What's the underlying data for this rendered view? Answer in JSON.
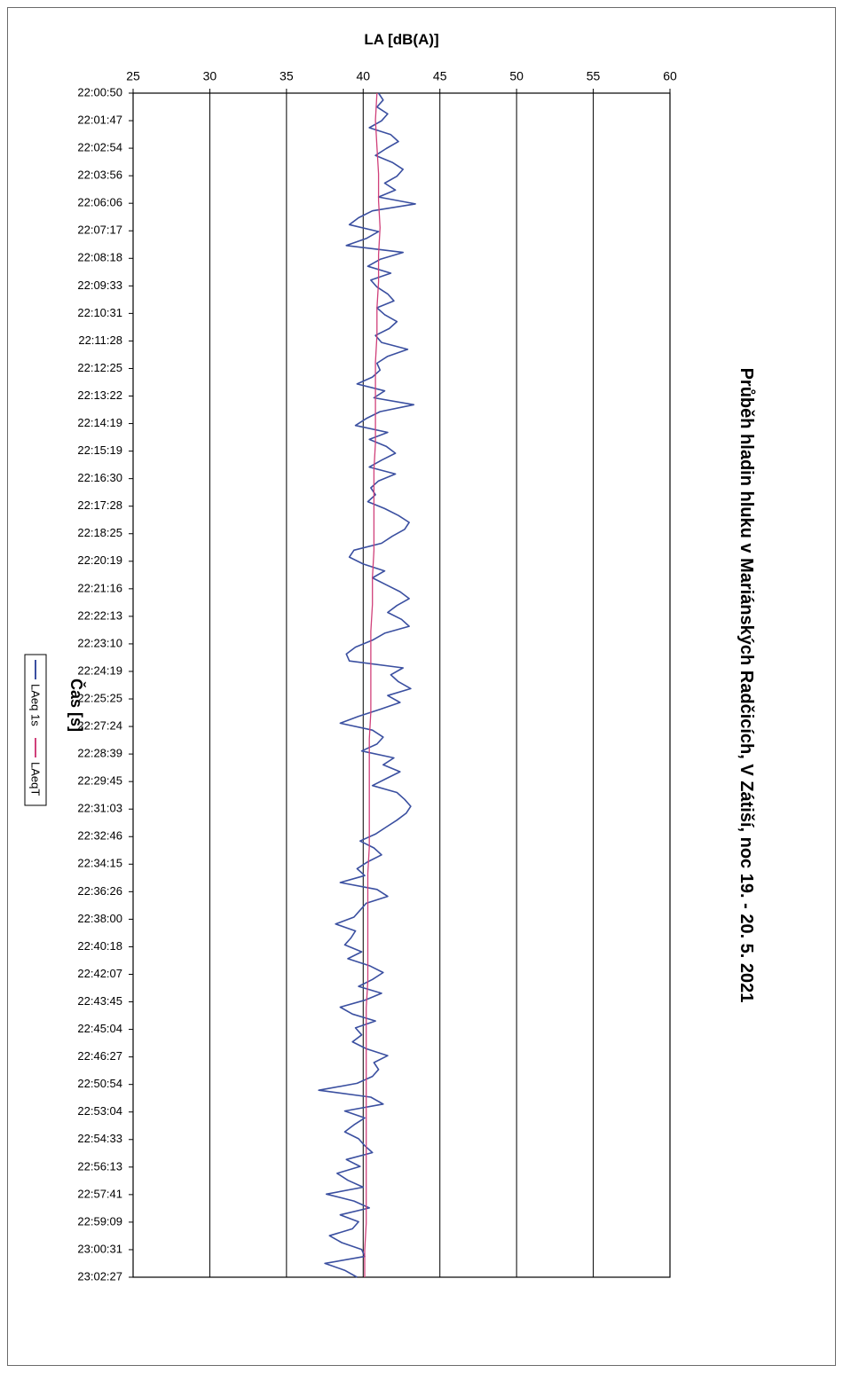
{
  "chart_data": {
    "type": "line",
    "title": "Průběh hladin hluku v Mariánských Radčicích, V Zátiší, noc 19. - 20. 5. 2021",
    "xlabel": "Čas [s]",
    "ylabel": "LA [dB(A)]",
    "ylim": [
      25,
      60
    ],
    "yticks": [
      25,
      30,
      35,
      40,
      45,
      50,
      55,
      60
    ],
    "grid": true,
    "orientation": "rotated-90-clockwise",
    "legend_position": "bottom",
    "x_ticks": [
      "22:00:50",
      "22:01:47",
      "22:02:54",
      "22:03:56",
      "22:06:06",
      "22:07:17",
      "22:08:18",
      "22:09:33",
      "22:10:31",
      "22:11:28",
      "22:12:25",
      "22:13:22",
      "22:14:19",
      "22:15:19",
      "22:16:30",
      "22:17:28",
      "22:18:25",
      "22:20:19",
      "22:21:16",
      "22:22:13",
      "22:23:10",
      "22:24:19",
      "22:25:25",
      "22:27:24",
      "22:28:39",
      "22:29:45",
      "22:31:03",
      "22:32:46",
      "22:34:15",
      "22:36:26",
      "22:38:00",
      "22:40:18",
      "22:42:07",
      "22:43:45",
      "22:45:04",
      "22:46:27",
      "22:50:54",
      "22:53:04",
      "22:54:33",
      "22:56:13",
      "22:57:41",
      "22:59:09",
      "23:00:31",
      "23:02:27"
    ],
    "series": [
      {
        "name": "LAeq 1s",
        "color": "#3a4fa0",
        "values": [
          41.0,
          41.3,
          40.9,
          41.6,
          41.2,
          40.4,
          41.8,
          42.3,
          41.5,
          40.8,
          41.9,
          42.6,
          42.2,
          41.4,
          42.1,
          41.0,
          43.4,
          40.6,
          39.7,
          39.1,
          41.0,
          40.2,
          38.9,
          42.6,
          41.1,
          40.3,
          41.8,
          40.5,
          40.9,
          41.6,
          42.0,
          40.9,
          41.4,
          42.2,
          41.7,
          40.8,
          41.2,
          42.9,
          41.6,
          40.9,
          41.1,
          40.6,
          39.6,
          41.4,
          40.7,
          43.3,
          41.1,
          40.2,
          39.5,
          41.6,
          40.4,
          41.5,
          42.1,
          41.2,
          40.4,
          42.1,
          41.0,
          40.5,
          40.8,
          40.3,
          41.4,
          42.3,
          43.0,
          42.7,
          41.9,
          41.2,
          39.4,
          39.1,
          40.0,
          41.4,
          40.6,
          41.5,
          42.4,
          43.0,
          42.2,
          41.6,
          42.5,
          43.0,
          41.4,
          40.6,
          39.5,
          38.9,
          39.1,
          42.6,
          41.8,
          42.3,
          43.1,
          41.6,
          42.4,
          41.1,
          39.7,
          38.5,
          40.6,
          41.3,
          40.9,
          39.9,
          42.0,
          41.3,
          42.4,
          41.5,
          40.6,
          42.2,
          42.7,
          43.1,
          42.8,
          42.2,
          41.5,
          40.8,
          39.8,
          40.7,
          41.2,
          40.3,
          39.6,
          40.1,
          38.5,
          40.9,
          41.6,
          40.2,
          39.8,
          39.4,
          38.2,
          39.5,
          39.2,
          38.8,
          39.9,
          39.0,
          40.4,
          41.3,
          40.6,
          39.7,
          41.2,
          40.1,
          38.5,
          39.3,
          40.8,
          39.5,
          39.9,
          39.3,
          40.2,
          41.6,
          40.7,
          41.0,
          40.6,
          39.6,
          37.1,
          40.5,
          41.3,
          38.8,
          40.1,
          39.4,
          38.8,
          39.7,
          40.1,
          40.6,
          38.9,
          39.8,
          38.3,
          39.0,
          40.0,
          37.6,
          39.4,
          40.4,
          38.5,
          39.7,
          39.3,
          37.8,
          38.6,
          39.9,
          40.1,
          37.5,
          38.8,
          39.6
        ],
        "lengths_note": "one value per visible point"
      },
      {
        "name": "LAeqT",
        "color": "#d0407a",
        "values": [
          40.9,
          40.8,
          40.9,
          41.0,
          41.0,
          41.1,
          41.0,
          41.0,
          40.9,
          40.9,
          40.8,
          40.8,
          40.8,
          40.8,
          40.7,
          40.7,
          40.7,
          40.7,
          40.6,
          40.6,
          40.5,
          40.5,
          40.5,
          40.5,
          40.4,
          40.4,
          40.4,
          40.4,
          40.4,
          40.3,
          40.3,
          40.3,
          40.3,
          40.3,
          40.2,
          40.2,
          40.2,
          40.2,
          40.2,
          40.2,
          40.2,
          40.2,
          40.2,
          40.1,
          40.1
        ]
      }
    ]
  }
}
